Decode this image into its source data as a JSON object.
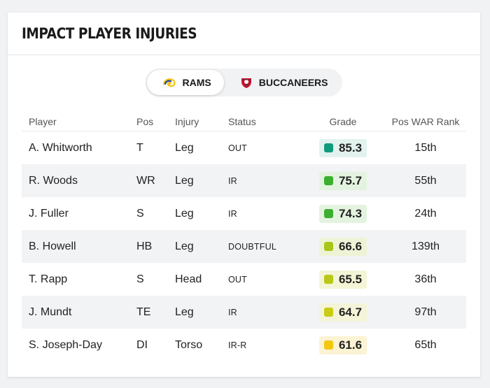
{
  "title": "IMPACT PLAYER INJURIES",
  "tabs": [
    {
      "label": "RAMS",
      "active": true,
      "logo": "rams-logo-icon"
    },
    {
      "label": "BUCCANEERS",
      "active": false,
      "logo": "buccaneers-logo-icon"
    }
  ],
  "columns": {
    "player": "Player",
    "pos": "Pos",
    "injury": "Injury",
    "status": "Status",
    "grade": "Grade",
    "rank": "Pos WAR Rank"
  },
  "rows": [
    {
      "player": "A. Whitworth",
      "pos": "T",
      "injury": "Leg",
      "status": "OUT",
      "grade": "85.3",
      "grade_color": "#0f9b7a",
      "grade_bg": "#e2f2ee",
      "rank": "15th"
    },
    {
      "player": "R. Woods",
      "pos": "WR",
      "injury": "Leg",
      "status": "IR",
      "grade": "75.7",
      "grade_color": "#3bb02f",
      "grade_bg": "#e4f3e0",
      "rank": "55th"
    },
    {
      "player": "J. Fuller",
      "pos": "S",
      "injury": "Leg",
      "status": "IR",
      "grade": "74.3",
      "grade_color": "#3bb02f",
      "grade_bg": "#e4f3e0",
      "rank": "24th"
    },
    {
      "player": "B. Howell",
      "pos": "HB",
      "injury": "Leg",
      "status": "DOUBTFUL",
      "grade": "66.6",
      "grade_color": "#a7c617",
      "grade_bg": "#eef3d6",
      "rank": "139th"
    },
    {
      "player": "T. Rapp",
      "pos": "S",
      "injury": "Head",
      "status": "OUT",
      "grade": "65.5",
      "grade_color": "#b9c814",
      "grade_bg": "#f3f5d6",
      "rank": "36th"
    },
    {
      "player": "J. Mundt",
      "pos": "TE",
      "injury": "Leg",
      "status": "IR",
      "grade": "64.7",
      "grade_color": "#c9cc12",
      "grade_bg": "#f3f4d8",
      "rank": "97th"
    },
    {
      "player": "S. Joseph-Day",
      "pos": "DI",
      "injury": "Torso",
      "status": "IR-R",
      "grade": "61.6",
      "grade_color": "#f2c811",
      "grade_bg": "#fbf3d4",
      "rank": "65th"
    }
  ]
}
